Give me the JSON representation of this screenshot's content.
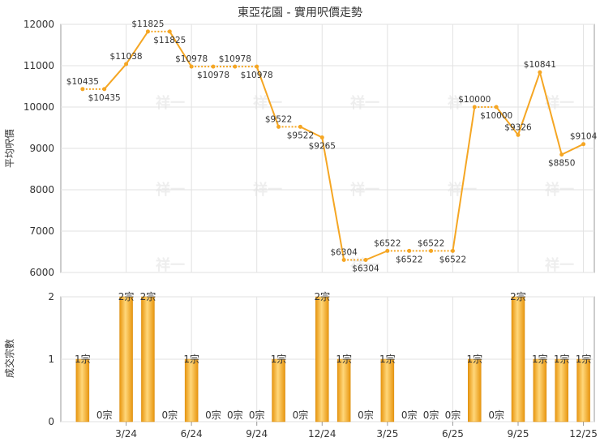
{
  "chart_data": [
    {
      "type": "line",
      "title": "東亞花園 - 實用呎價走勢",
      "ylabel": "平均呎價",
      "ylim": [
        6000,
        12000
      ],
      "yticks": [
        6000,
        7000,
        8000,
        9000,
        10000,
        11000,
        12000
      ],
      "grid": true,
      "color": "#f5a623",
      "x": [
        1,
        2,
        3,
        4,
        5,
        6,
        7,
        8,
        9,
        10,
        11,
        12,
        13,
        14,
        15,
        16,
        17,
        18,
        19,
        20,
        21,
        22,
        23,
        24,
        25,
        26
      ],
      "values": [
        10435,
        10435,
        11038,
        11825,
        11825,
        10978,
        10978,
        10978,
        10978,
        9522,
        9522,
        9265,
        6304,
        6304,
        6522,
        6522,
        6522,
        6522,
        10000,
        10000,
        9326,
        10841,
        8850,
        9104,
        null,
        null
      ],
      "labels": [
        "$10435",
        "$10435",
        "$11038",
        "$11825",
        "$11825",
        "$10978",
        "$10978",
        "$10978",
        "$10978",
        "$9522",
        "$9522",
        "$9265",
        "$6304",
        "$6304",
        "$6522",
        "$6522",
        "$6522",
        "$6522",
        "$10000",
        "$10000",
        "$9326",
        "$10841",
        "$8850",
        "$9104"
      ],
      "dotted_segments": [
        [
          1,
          2
        ],
        [
          4,
          5
        ],
        [
          6,
          7
        ],
        [
          7,
          8
        ],
        [
          8,
          9
        ],
        [
          10,
          11
        ],
        [
          13,
          14
        ],
        [
          15,
          16
        ],
        [
          16,
          17
        ],
        [
          17,
          18
        ],
        [
          19,
          20
        ]
      ]
    },
    {
      "type": "bar",
      "ylabel": "成交宗數",
      "ylim": [
        0,
        2
      ],
      "yticks": [
        0,
        1,
        2
      ],
      "color": "#f5a623",
      "x": [
        1,
        2,
        3,
        4,
        5,
        6,
        7,
        8,
        9,
        10,
        11,
        12,
        13,
        14,
        15,
        16,
        17,
        18,
        19,
        20,
        21,
        22,
        23,
        24
      ],
      "values": [
        1,
        0,
        2,
        2,
        0,
        1,
        0,
        0,
        0,
        1,
        0,
        2,
        1,
        0,
        1,
        0,
        0,
        0,
        1,
        0,
        2,
        1,
        1,
        1
      ],
      "labels": [
        "1宗",
        "0宗",
        "2宗",
        "2宗",
        "0宗",
        "1宗",
        "0宗",
        "0宗",
        "0宗",
        "1宗",
        "0宗",
        "2宗",
        "1宗",
        "0宗",
        "1宗",
        "0宗",
        "0宗",
        "0宗",
        "1宗",
        "0宗",
        "2宗",
        "1宗",
        "1宗",
        "1宗"
      ]
    }
  ],
  "x_axis": {
    "ticks": [
      {
        "pos": 3,
        "label": "3/24"
      },
      {
        "pos": 6,
        "label": "6/24"
      },
      {
        "pos": 9,
        "label": "9/24"
      },
      {
        "pos": 12,
        "label": "12/24"
      },
      {
        "pos": 15,
        "label": "3/25"
      },
      {
        "pos": 18,
        "label": "6/25"
      },
      {
        "pos": 21,
        "label": "9/25"
      },
      {
        "pos": 24,
        "label": "12/25"
      }
    ],
    "range": [
      0,
      24.5
    ]
  },
  "watermark": "祥一"
}
